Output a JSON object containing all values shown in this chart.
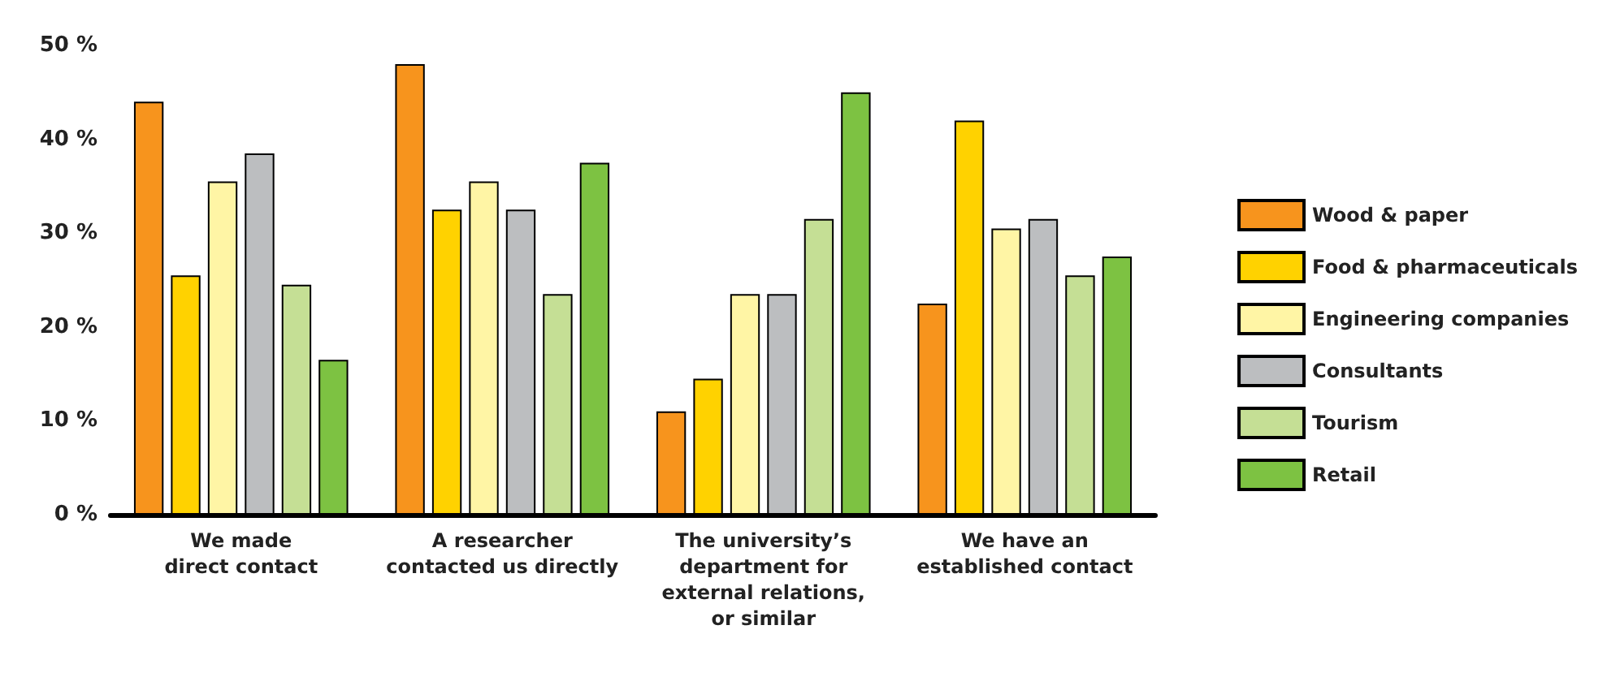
{
  "chart_data": {
    "type": "bar",
    "categories": [
      "We made\ndirect contact",
      "A researcher\ncontacted us directly",
      "The university’s\ndepartment for\nexternal relations,\nor similar",
      "We have an\nestablished contact"
    ],
    "series": [
      {
        "name": "Wood & paper",
        "color": "#f7941d",
        "values": [
          44,
          48,
          11,
          22.5
        ]
      },
      {
        "name": "Food & pharmaceuticals",
        "color": "#ffd200",
        "values": [
          25.5,
          32.5,
          14.5,
          42
        ]
      },
      {
        "name": "Engineering companies",
        "color": "#fff5a5",
        "values": [
          35.5,
          35.5,
          23.5,
          30.5
        ]
      },
      {
        "name": "Consultants",
        "color": "#bcbec0",
        "values": [
          38.5,
          32.5,
          23.5,
          31.5
        ]
      },
      {
        "name": "Tourism",
        "color": "#c5df95",
        "values": [
          24.5,
          23.5,
          31.5,
          25.5
        ]
      },
      {
        "name": "Retail",
        "color": "#7dc242",
        "values": [
          16.5,
          37.5,
          45,
          27.5
        ]
      }
    ],
    "ylim": [
      0,
      50
    ],
    "yticks": [
      {
        "value": 0,
        "label": "0 %"
      },
      {
        "value": 10,
        "label": "10 %"
      },
      {
        "value": 20,
        "label": "20 %"
      },
      {
        "value": 30,
        "label": "30 %"
      },
      {
        "value": 40,
        "label": "40 %"
      },
      {
        "value": 50,
        "label": "50 %"
      }
    ],
    "grid": false,
    "legend": "right"
  }
}
